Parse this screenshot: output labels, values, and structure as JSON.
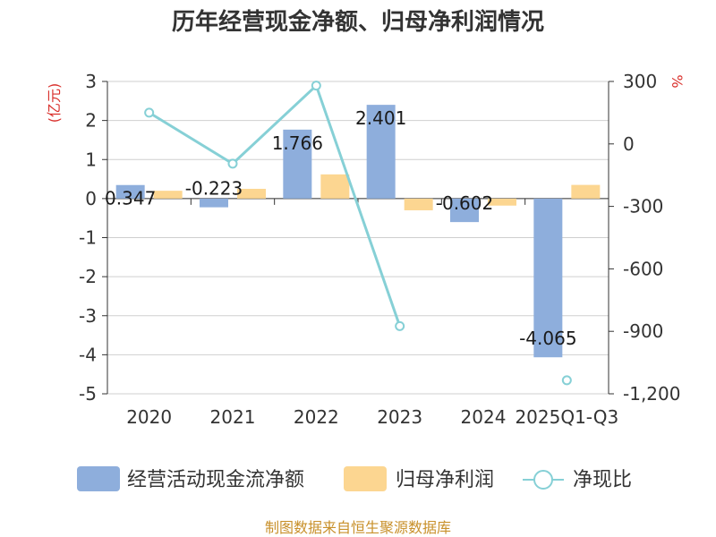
{
  "chart_data": {
    "type": "bar+line",
    "title": "历年经营现金净额、归母净利润情况",
    "categories": [
      "2020",
      "2021",
      "2022",
      "2023",
      "2024",
      "2025Q1-Q3"
    ],
    "left_axis": {
      "unit": "(亿元)",
      "min": -5,
      "max": 3,
      "step": 1,
      "ticks": [
        "3",
        "2",
        "1",
        "0",
        "-1",
        "-2",
        "-3",
        "-4",
        "-5"
      ]
    },
    "right_axis": {
      "unit": "%",
      "min": -1200,
      "max": 300,
      "step": 300,
      "ticks": [
        "300",
        "0",
        "-300",
        "-600",
        "-900",
        "-1,200"
      ]
    },
    "series": [
      {
        "name": "经营活动现金流净额",
        "type": "bar",
        "axis": "left",
        "color": "#8eaedc",
        "values": [
          0.347,
          -0.223,
          1.766,
          2.401,
          -0.602,
          -4.065
        ],
        "labels": [
          "0.347",
          "-0.223",
          "1.766",
          "2.401",
          "-0.602",
          "-4.065"
        ]
      },
      {
        "name": "归母净利润",
        "type": "bar",
        "axis": "left",
        "color": "#fcd691",
        "values": [
          0.2,
          0.25,
          0.62,
          -0.3,
          -0.18,
          0.35
        ]
      },
      {
        "name": "净现比",
        "type": "line",
        "axis": "right",
        "color": "#86d0d6",
        "values": [
          150,
          -95,
          280,
          -875,
          null,
          -1135
        ]
      }
    ],
    "legend_position": "bottom",
    "source": "制图数据来自恒生聚源数据库"
  }
}
